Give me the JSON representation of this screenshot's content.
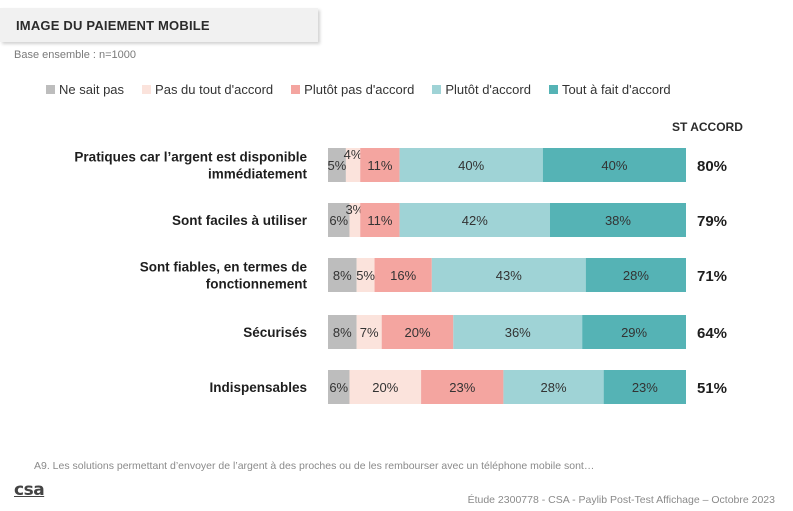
{
  "header": {
    "title": "IMAGE DU PAIEMENT MOBILE",
    "base": "Base ensemble : n=1000"
  },
  "legend": [
    {
      "label": "Ne sait pas",
      "color": "#bdbdbd"
    },
    {
      "label": "Pas du tout d'accord",
      "color": "#fbe3dc"
    },
    {
      "label": "Plutôt pas d'accord",
      "color": "#f4a5a0"
    },
    {
      "label": "Plutôt d'accord",
      "color": "#9fd3d6"
    },
    {
      "label": "Tout à fait d'accord",
      "color": "#55b3b5"
    }
  ],
  "st_header": "ST ACCORD",
  "chart_data": {
    "type": "bar",
    "stacked": true,
    "orientation": "horizontal",
    "categories": [
      [
        "Pratiques car l’argent est disponible",
        "immédiatement"
      ],
      [
        "Sont faciles à utiliser"
      ],
      [
        "Sont fiables, en termes de",
        "fonctionnement"
      ],
      [
        "Sécurisés"
      ],
      [
        "Indispensables"
      ]
    ],
    "series": [
      {
        "name": "Ne sait pas",
        "values": [
          5,
          6,
          8,
          8,
          6
        ]
      },
      {
        "name": "Pas du tout d'accord",
        "values": [
          4,
          3,
          5,
          7,
          20
        ]
      },
      {
        "name": "Plutôt pas d'accord",
        "values": [
          11,
          11,
          16,
          20,
          23
        ]
      },
      {
        "name": "Plutôt d'accord",
        "values": [
          40,
          42,
          43,
          36,
          28
        ]
      },
      {
        "name": "Tout à fait d'accord",
        "values": [
          40,
          38,
          28,
          29,
          23
        ]
      }
    ],
    "st_accord": [
      "80%",
      "79%",
      "71%",
      "64%",
      "51%"
    ],
    "xlim": [
      0,
      100
    ]
  },
  "footer": {
    "question": "A9. Les solutions permettant d’envoyer de l’argent à des proches ou de les rembourser avec un téléphone mobile sont…",
    "logo": "csa",
    "source": "Étude 2300778 - CSA - Paylib Post-Test Affichage – Octobre 2023"
  }
}
